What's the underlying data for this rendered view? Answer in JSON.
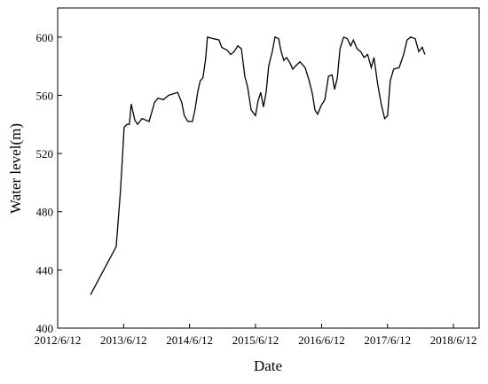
{
  "chart_data": {
    "type": "line",
    "xlabel": "Date",
    "ylabel": "Water level(m)",
    "x": [
      "2012/12/11",
      "2013/5/2",
      "2013/5/26",
      "2013/6/15",
      "2013/6/30",
      "2013/7/14",
      "2013/7/24",
      "2013/8/13",
      "2013/8/28",
      "2013/9/22",
      "2013/10/31",
      "2013/11/30",
      "2013/12/19",
      "2014/1/18",
      "2014/2/16",
      "2014/4/7",
      "2014/4/30",
      "2014/5/14",
      "2014/6/3",
      "2014/6/28",
      "2014/7/12",
      "2014/7/27",
      "2014/8/10",
      "2014/8/25",
      "2014/9/9",
      "2014/9/19",
      "2014/10/19",
      "2014/11/22",
      "2014/12/7",
      "2015/1/6",
      "2015/1/25",
      "2015/2/14",
      "2015/3/6",
      "2015/3/26",
      "2015/4/14",
      "2015/4/29",
      "2015/5/19",
      "2015/6/12",
      "2015/6/26",
      "2015/7/11",
      "2015/7/26",
      "2015/8/10",
      "2015/8/24",
      "2015/9/13",
      "2015/9/28",
      "2015/10/18",
      "2015/11/1",
      "2015/11/16",
      "2015/12/1",
      "2015/12/21",
      "2016/1/4",
      "2016/1/19",
      "2016/2/13",
      "2016/3/13",
      "2016/4/2",
      "2016/4/22",
      "2016/5/6",
      "2016/5/21",
      "2016/6/10",
      "2016/6/30",
      "2016/7/20",
      "2016/8/9",
      "2016/8/23",
      "2016/9/7",
      "2016/9/22",
      "2016/10/12",
      "2016/11/1",
      "2016/11/20",
      "2016/12/5",
      "2016/12/25",
      "2017/1/14",
      "2017/2/2",
      "2017/2/22",
      "2017/3/14",
      "2017/3/29",
      "2017/4/18",
      "2017/5/8",
      "2017/5/27",
      "2017/6/12",
      "2017/6/27",
      "2017/7/16",
      "2017/8/15",
      "2017/9/9",
      "2017/9/28",
      "2017/10/18",
      "2017/11/12",
      "2017/12/2",
      "2017/12/21",
      "2018/1/5"
    ],
    "series": [
      {
        "color": "#000000",
        "values": [
          423,
          456,
          495,
          538,
          540,
          540,
          554,
          543,
          540,
          544,
          542,
          555,
          558,
          557,
          560,
          562,
          555,
          546,
          542,
          542,
          550,
          562,
          570,
          572,
          585,
          600,
          599,
          598,
          593,
          591,
          588,
          590,
          594,
          592,
          573,
          566,
          550,
          546,
          556,
          562,
          552,
          562,
          580,
          590,
          600,
          599,
          590,
          584,
          586,
          582,
          578,
          580,
          583,
          579,
          571,
          561,
          550,
          547,
          553,
          557,
          573,
          574,
          564,
          572,
          592,
          600,
          599,
          594,
          598,
          592,
          590,
          586,
          588,
          579,
          586,
          568,
          554,
          544,
          546,
          570,
          578,
          579,
          588,
          598,
          600,
          599,
          590,
          593,
          588
        ]
      }
    ],
    "xlim": [
      "2012/6/12",
      "2018/11/1"
    ],
    "xticks": [
      "2012/6/12",
      "2013/6/12",
      "2014/6/12",
      "2015/6/12",
      "2016/6/12",
      "2017/6/12",
      "2018/6/12"
    ],
    "ylim": [
      400,
      620
    ],
    "yticks": [
      400,
      440,
      480,
      520,
      560,
      600
    ]
  }
}
